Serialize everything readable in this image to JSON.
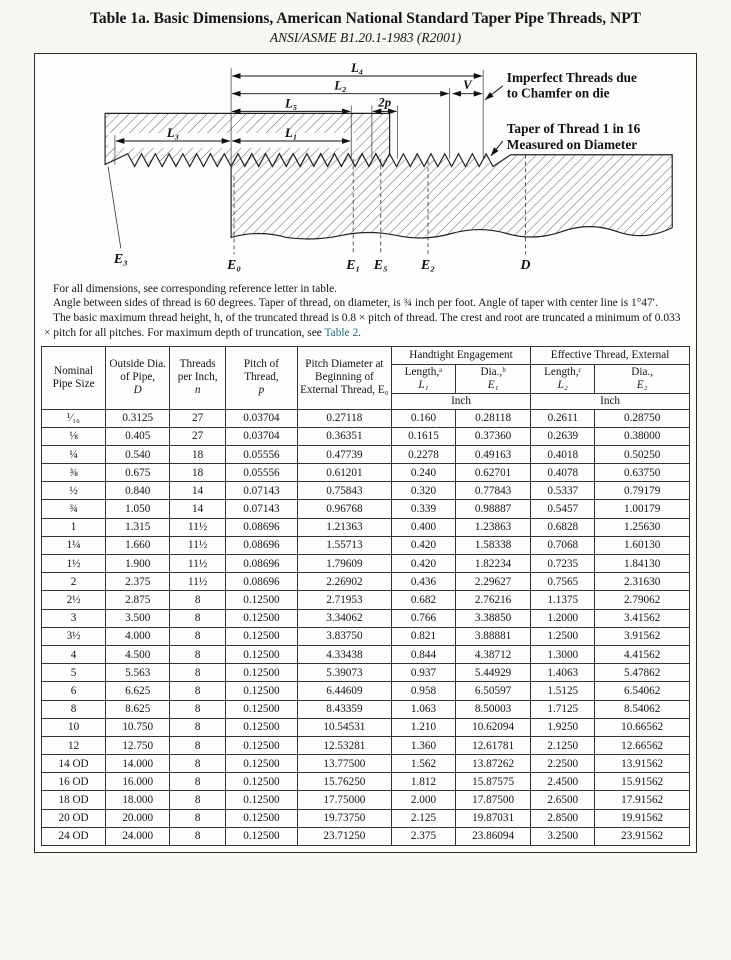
{
  "title": "Table 1a.  Basic Dimensions, American National Standard Taper Pipe Threads, NPT",
  "subtitle": "ANSI/ASME B1.20.1-1983 (R2001)",
  "diagram": {
    "labels": {
      "L4": "L₄",
      "L2": "L₂",
      "L5": "L₅",
      "L3": "L₃",
      "L1": "L₁",
      "two_p": "2p",
      "V": "V",
      "E0": "E₀",
      "E1": "E₁",
      "E5": "E₅",
      "E2": "E₂",
      "E3": "E₃",
      "D": "D"
    },
    "callout_imperfect_line1": "Imperfect Threads due",
    "callout_imperfect_line2": "to Chamfer on die",
    "callout_taper_line1": "Taper of Thread 1 in 16",
    "callout_taper_line2": "Measured on Diameter"
  },
  "notes": {
    "note1": "For all dimensions, see corresponding reference letter in table.",
    "note2": "Angle between sides of thread is 60 degrees. Taper of thread, on diameter, is ¾ inch per foot. Angle of taper with center line is 1°47′.",
    "note3_prefix": "The basic maximum thread height, h, of the truncated thread is 0.8 × pitch of thread. The crest and root are truncated a minimum of 0.033 × pitch for all pitches. For maximum depth of truncation, see ",
    "note3_link": "Table 2",
    "note3_suffix": "."
  },
  "table": {
    "headers": {
      "nominal": "Nominal Pipe Size",
      "outside_label": "Outside Dia. of Pipe,",
      "outside_sym": "D",
      "tpi_label": "Threads per Inch,",
      "tpi_sym": "n",
      "pitch_label": "Pitch of Thread,",
      "pitch_sym": "p",
      "pd_label": "Pitch Diameter at Beginning of External Thread, E₀",
      "handtight": "Handtight Engagement",
      "effective": "Effective Thread, External",
      "ht_len_label": "Length,ᵃ",
      "ht_len_sym": "L₁",
      "ht_dia_label": "Dia.,ᵇ",
      "ht_dia_sym": "E₁",
      "ef_len_label": "Length,ᶜ",
      "ef_len_sym": "L₂",
      "ef_dia_label": "Dia.,",
      "ef_dia_sym": "E₂",
      "unit_inch": "Inch"
    },
    "rows": [
      [
        "¹⁄₁₆",
        "0.3125",
        "27",
        "0.03704",
        "0.27118",
        "0.160",
        "0.28118",
        "0.2611",
        "0.28750"
      ],
      [
        "⅛",
        "0.405",
        "27",
        "0.03704",
        "0.36351",
        "0.1615",
        "0.37360",
        "0.2639",
        "0.38000"
      ],
      [
        "¼",
        "0.540",
        "18",
        "0.05556",
        "0.47739",
        "0.2278",
        "0.49163",
        "0.4018",
        "0.50250"
      ],
      [
        "⅜",
        "0.675",
        "18",
        "0.05556",
        "0.61201",
        "0.240",
        "0.62701",
        "0.4078",
        "0.63750"
      ],
      [
        "½",
        "0.840",
        "14",
        "0.07143",
        "0.75843",
        "0.320",
        "0.77843",
        "0.5337",
        "0.79179"
      ],
      [
        "¾",
        "1.050",
        "14",
        "0.07143",
        "0.96768",
        "0.339",
        "0.98887",
        "0.5457",
        "1.00179"
      ],
      [
        "1",
        "1.315",
        "11½",
        "0.08696",
        "1.21363",
        "0.400",
        "1.23863",
        "0.6828",
        "1.25630"
      ],
      [
        "1¼",
        "1.660",
        "11½",
        "0.08696",
        "1.55713",
        "0.420",
        "1.58338",
        "0.7068",
        "1.60130"
      ],
      [
        "1½",
        "1.900",
        "11½",
        "0.08696",
        "1.79609",
        "0.420",
        "1.82234",
        "0.7235",
        "1.84130"
      ],
      [
        "2",
        "2.375",
        "11½",
        "0.08696",
        "2.26902",
        "0.436",
        "2.29627",
        "0.7565",
        "2.31630"
      ],
      [
        "2½",
        "2.875",
        "8",
        "0.12500",
        "2.71953",
        "0.682",
        "2.76216",
        "1.1375",
        "2.79062"
      ],
      [
        "3",
        "3.500",
        "8",
        "0.12500",
        "3.34062",
        "0.766",
        "3.38850",
        "1.2000",
        "3.41562"
      ],
      [
        "3½",
        "4.000",
        "8",
        "0.12500",
        "3.83750",
        "0.821",
        "3.88881",
        "1.2500",
        "3.91562"
      ],
      [
        "4",
        "4.500",
        "8",
        "0.12500",
        "4.33438",
        "0.844",
        "4.38712",
        "1.3000",
        "4.41562"
      ],
      [
        "5",
        "5.563",
        "8",
        "0.12500",
        "5.39073",
        "0.937",
        "5.44929",
        "1.4063",
        "5.47862"
      ],
      [
        "6",
        "6.625",
        "8",
        "0.12500",
        "6.44609",
        "0.958",
        "6.50597",
        "1.5125",
        "6.54062"
      ],
      [
        "8",
        "8.625",
        "8",
        "0.12500",
        "8.43359",
        "1.063",
        "8.50003",
        "1.7125",
        "8.54062"
      ],
      [
        "10",
        "10.750",
        "8",
        "0.12500",
        "10.54531",
        "1.210",
        "10.62094",
        "1.9250",
        "10.66562"
      ],
      [
        "12",
        "12.750",
        "8",
        "0.12500",
        "12.53281",
        "1.360",
        "12.61781",
        "2.1250",
        "12.66562"
      ],
      [
        "14 OD",
        "14.000",
        "8",
        "0.12500",
        "13.77500",
        "1.562",
        "13.87262",
        "2.2500",
        "13.91562"
      ],
      [
        "16 OD",
        "16.000",
        "8",
        "0.12500",
        "15.76250",
        "1.812",
        "15.87575",
        "2.4500",
        "15.91562"
      ],
      [
        "18 OD",
        "18.000",
        "8",
        "0.12500",
        "17.75000",
        "2.000",
        "17.87500",
        "2.6500",
        "17.91562"
      ],
      [
        "20 OD",
        "20.000",
        "8",
        "0.12500",
        "19.73750",
        "2.125",
        "19.87031",
        "2.8500",
        "19.91562"
      ],
      [
        "24 OD",
        "24.000",
        "8",
        "0.12500",
        "23.71250",
        "2.375",
        "23.86094",
        "3.2500",
        "23.91562"
      ]
    ]
  }
}
